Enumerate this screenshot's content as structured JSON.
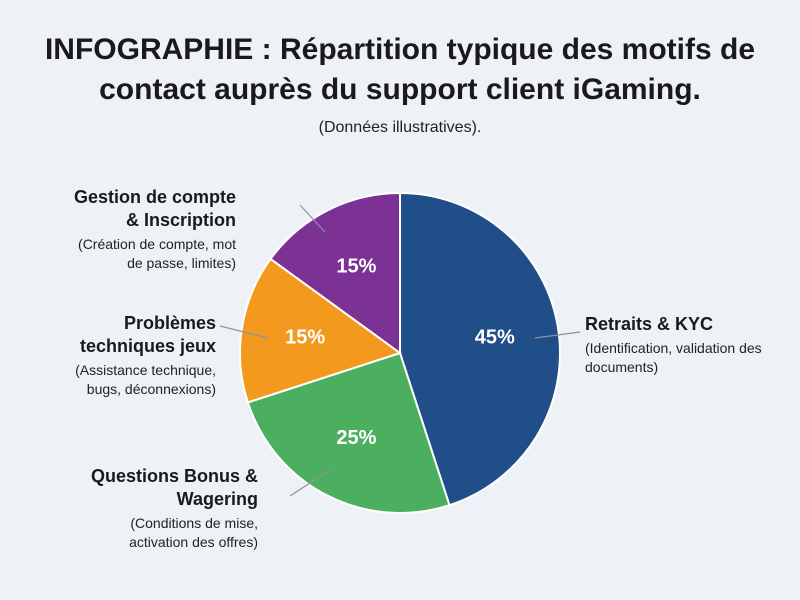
{
  "chart_data": {
    "type": "pie",
    "title": "INFOGRAPHIE : Répartition typique des motifs de contact auprès du support client iGaming.",
    "subtitle": "(Données illustratives).",
    "categories": [
      "Retraits & KYC",
      "Questions Bonus & Wagering",
      "Problèmes techniques jeux",
      "Gestion de compte & Inscription"
    ],
    "descriptions": [
      "(Identification, validation des documents)",
      "(Conditions de mise, activation des offres)",
      "(Assistance technique, bugs, déconnexions)",
      "(Création de compte, mot de passe, limites)"
    ],
    "values": [
      45,
      25,
      15,
      15
    ],
    "value_labels": [
      "45%",
      "25%",
      "15%",
      "15%"
    ],
    "colors": [
      "#1f4e89",
      "#4caf5f",
      "#f39a1e",
      "#7b3294"
    ]
  }
}
